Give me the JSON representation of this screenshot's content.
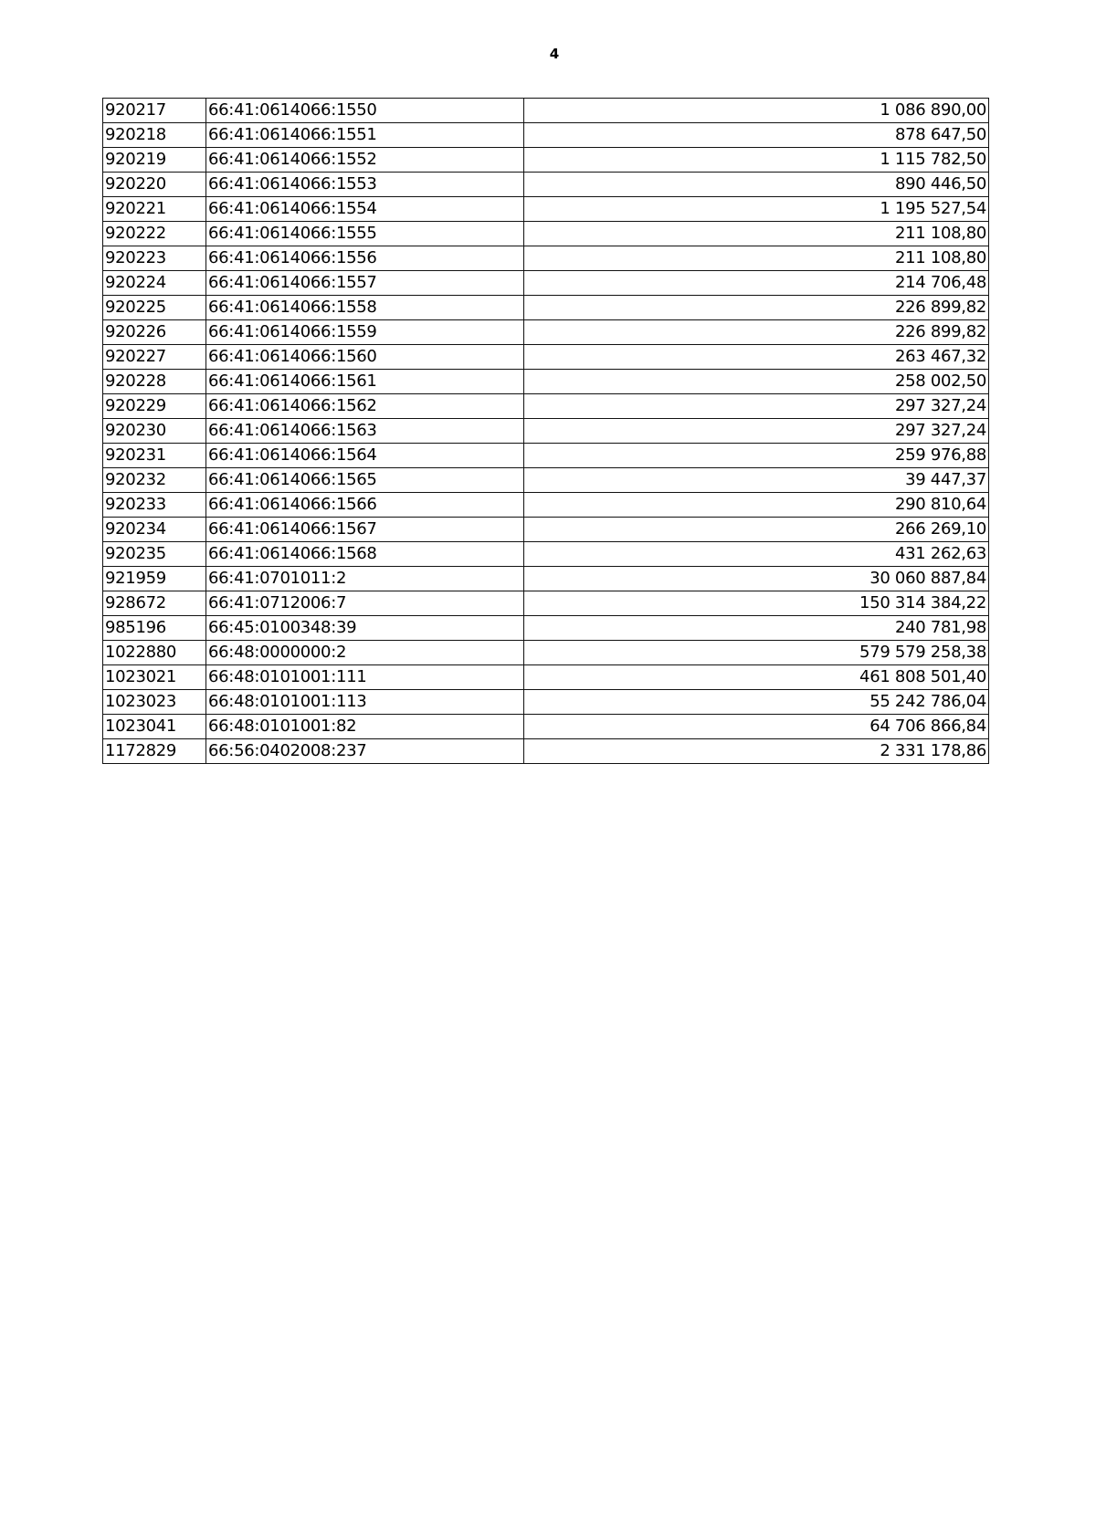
{
  "page_number": "4",
  "rows": [
    {
      "id": "920217",
      "cadastral": "66:41:0614066:1550",
      "value": "1 086 890,00"
    },
    {
      "id": "920218",
      "cadastral": "66:41:0614066:1551",
      "value": "878 647,50"
    },
    {
      "id": "920219",
      "cadastral": "66:41:0614066:1552",
      "value": "1 115 782,50"
    },
    {
      "id": "920220",
      "cadastral": "66:41:0614066:1553",
      "value": "890 446,50"
    },
    {
      "id": "920221",
      "cadastral": "66:41:0614066:1554",
      "value": "1 195 527,54"
    },
    {
      "id": "920222",
      "cadastral": "66:41:0614066:1555",
      "value": "211 108,80"
    },
    {
      "id": "920223",
      "cadastral": "66:41:0614066:1556",
      "value": "211 108,80"
    },
    {
      "id": "920224",
      "cadastral": "66:41:0614066:1557",
      "value": "214 706,48"
    },
    {
      "id": "920225",
      "cadastral": "66:41:0614066:1558",
      "value": "226 899,82"
    },
    {
      "id": "920226",
      "cadastral": "66:41:0614066:1559",
      "value": "226 899,82"
    },
    {
      "id": "920227",
      "cadastral": "66:41:0614066:1560",
      "value": "263 467,32"
    },
    {
      "id": "920228",
      "cadastral": "66:41:0614066:1561",
      "value": "258 002,50"
    },
    {
      "id": "920229",
      "cadastral": "66:41:0614066:1562",
      "value": "297 327,24"
    },
    {
      "id": "920230",
      "cadastral": "66:41:0614066:1563",
      "value": "297 327,24"
    },
    {
      "id": "920231",
      "cadastral": "66:41:0614066:1564",
      "value": "259 976,88"
    },
    {
      "id": "920232",
      "cadastral": "66:41:0614066:1565",
      "value": "39 447,37"
    },
    {
      "id": "920233",
      "cadastral": "66:41:0614066:1566",
      "value": "290 810,64"
    },
    {
      "id": "920234",
      "cadastral": "66:41:0614066:1567",
      "value": "266 269,10"
    },
    {
      "id": "920235",
      "cadastral": "66:41:0614066:1568",
      "value": "431 262,63"
    },
    {
      "id": "921959",
      "cadastral": "66:41:0701011:2",
      "value": "30 060 887,84"
    },
    {
      "id": "928672",
      "cadastral": "66:41:0712006:7",
      "value": "150 314 384,22"
    },
    {
      "id": "985196",
      "cadastral": "66:45:0100348:39",
      "value": "240 781,98"
    },
    {
      "id": "1022880",
      "cadastral": "66:48:0000000:2",
      "value": "579 579 258,38"
    },
    {
      "id": "1023021",
      "cadastral": "66:48:0101001:111",
      "value": "461 808 501,40"
    },
    {
      "id": "1023023",
      "cadastral": "66:48:0101001:113",
      "value": "55 242 786,04"
    },
    {
      "id": "1023041",
      "cadastral": "66:48:0101001:82",
      "value": "64 706 866,84"
    },
    {
      "id": "1172829",
      "cadastral": "66:56:0402008:237",
      "value": "2 331 178,86"
    }
  ]
}
